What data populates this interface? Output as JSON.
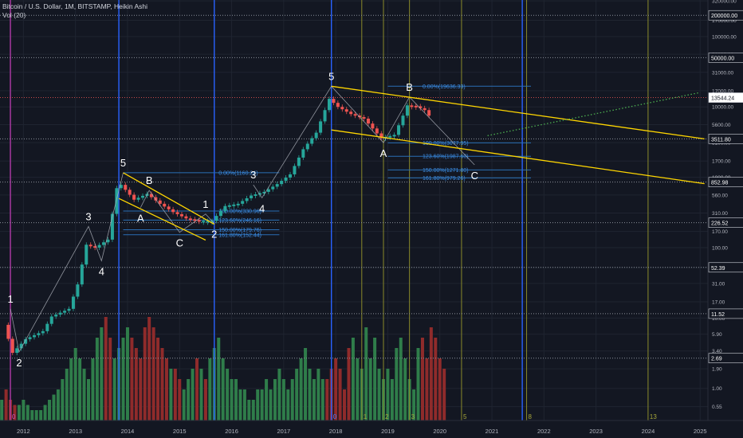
{
  "header": {
    "symbol_line": "Bitcoin / U.S. Dollar, 1M, BITSTAMP, Heikin Ashi",
    "volume_label": "Vol (20)"
  },
  "colors": {
    "background": "#131722",
    "grid": "#1f2430",
    "bull": "#26a69a",
    "bear": "#ef5350",
    "bull_volume": "#2f7d4a",
    "bear_volume": "#8f2b2b",
    "trend_line": "#ffd600",
    "fib_line": "#2a6fb5",
    "fib_text": "#3d8ee6",
    "vline_blue": "#2962ff",
    "vline_olive": "#8a8a2a",
    "vline_magenta": "#b03aa8",
    "wave_path": "#b2b5be",
    "label": "#ffffff",
    "projection": "#4caf50"
  },
  "chart_data": {
    "type": "candlestick",
    "style": "Heikin Ashi",
    "timeframe": "1M",
    "y_scale": "log",
    "x_axis": {
      "type": "year",
      "range": [
        2011.55,
        2025.15
      ],
      "ticks": [
        "2012",
        "2013",
        "2014",
        "2015",
        "2016",
        "2017",
        "2018",
        "2019",
        "2020",
        "2021",
        "2022",
        "2023",
        "2024",
        "2025"
      ]
    },
    "y_axis": {
      "range": [
        0.35,
        330000
      ],
      "ticks": [
        "0.55",
        "1.00",
        "1.90",
        "3.40",
        "5.90",
        "10.00",
        "17.00",
        "31.00",
        "52.00",
        "100.00",
        "170.00",
        "310.00",
        "560.00",
        "1000.00",
        "1700.00",
        "3100.00",
        "5600.00",
        "10000.00",
        "17000.00",
        "31000.00",
        "56000.00",
        "100000.00",
        "170000.00",
        "320000.00"
      ],
      "marked_levels": [
        "200000.00",
        "50000.00",
        "13544.24",
        "3511.80",
        "852.98",
        "226.52",
        "52.39",
        "11.52",
        "2.69"
      ],
      "highlighted_level": "13544.24"
    },
    "price_series": [
      {
        "date": "2011-09",
        "value": 8.0
      },
      {
        "date": "2011-11",
        "value": 3.2
      },
      {
        "date": "2012-02",
        "value": 5.0
      },
      {
        "date": "2012-06",
        "value": 6.5
      },
      {
        "date": "2012-08",
        "value": 10.5
      },
      {
        "date": "2012-12",
        "value": 13.5
      },
      {
        "date": "2013-02",
        "value": 30
      },
      {
        "date": "2013-04",
        "value": 110
      },
      {
        "date": "2013-06",
        "value": 100
      },
      {
        "date": "2013-09",
        "value": 130
      },
      {
        "date": "2013-11",
        "value": 700
      },
      {
        "date": "2013-12",
        "value": 780
      },
      {
        "date": "2014-03",
        "value": 480
      },
      {
        "date": "2014-06",
        "value": 580
      },
      {
        "date": "2014-09",
        "value": 420
      },
      {
        "date": "2014-12",
        "value": 320
      },
      {
        "date": "2015-03",
        "value": 260
      },
      {
        "date": "2015-06",
        "value": 240
      },
      {
        "date": "2015-09",
        "value": 240
      },
      {
        "date": "2015-12",
        "value": 390
      },
      {
        "date": "2016-03",
        "value": 420
      },
      {
        "date": "2016-06",
        "value": 550
      },
      {
        "date": "2016-09",
        "value": 620
      },
      {
        "date": "2016-12",
        "value": 800
      },
      {
        "date": "2017-03",
        "value": 1100
      },
      {
        "date": "2017-06",
        "value": 2500
      },
      {
        "date": "2017-09",
        "value": 4300
      },
      {
        "date": "2017-11",
        "value": 9000
      },
      {
        "date": "2017-12",
        "value": 13000
      },
      {
        "date": "2018-02",
        "value": 10000
      },
      {
        "date": "2018-05",
        "value": 7900
      },
      {
        "date": "2018-08",
        "value": 6800
      },
      {
        "date": "2018-11",
        "value": 4200
      },
      {
        "date": "2018-12",
        "value": 3600
      },
      {
        "date": "2019-03",
        "value": 4000
      },
      {
        "date": "2019-05",
        "value": 7500
      },
      {
        "date": "2019-06",
        "value": 10500
      },
      {
        "date": "2019-08",
        "value": 10200
      },
      {
        "date": "2019-10",
        "value": 9000
      },
      {
        "date": "2019-11",
        "value": 7500
      }
    ],
    "volume": {
      "scale": "relative",
      "values": [
        2,
        3,
        2,
        1.5,
        1.5,
        2,
        1.5,
        1,
        1,
        1,
        1.5,
        2,
        2.5,
        3,
        4,
        5,
        6,
        7,
        6,
        5,
        4,
        6,
        8,
        9,
        10,
        8,
        6,
        7,
        8,
        9,
        8,
        7,
        6,
        9,
        10,
        9,
        8,
        7,
        6,
        5,
        5,
        4,
        3,
        4,
        5,
        6,
        5,
        4,
        6,
        7,
        8,
        6,
        5,
        4,
        4,
        3,
        3,
        2,
        2,
        3,
        3,
        4,
        3,
        4,
        5,
        4,
        3,
        4,
        5,
        6,
        7,
        5,
        4,
        5,
        4,
        4,
        5,
        6,
        5,
        3,
        7,
        8,
        6,
        5,
        9,
        6,
        8,
        5,
        4,
        5,
        4,
        7,
        8,
        6,
        4,
        3,
        7,
        8,
        6,
        9,
        8,
        6,
        5
      ],
      "red_at": [
        1,
        2,
        3,
        24,
        25,
        30,
        31,
        32,
        33,
        34,
        35,
        36,
        37,
        38,
        40,
        41,
        45,
        47,
        75,
        76,
        77,
        78,
        79,
        80,
        97,
        98,
        99,
        100,
        101,
        102
      ]
    },
    "waves_2011_2013": [
      {
        "label": "1",
        "date": "2011-10",
        "value": 13.5
      },
      {
        "label": "2",
        "date": "2011-12",
        "value": 3.3
      },
      {
        "label": "3",
        "date": "2013-04",
        "value": 200
      },
      {
        "label": "4",
        "date": "2013-07",
        "value": 65
      },
      {
        "label": "5",
        "date": "2013-12",
        "value": 1160
      }
    ],
    "waves_2014_2015": [
      {
        "label": "A",
        "date": "2014-04",
        "value": 370
      },
      {
        "label": "B",
        "date": "2014-06",
        "value": 650
      },
      {
        "label": "C",
        "date": "2015-01",
        "value": 165
      },
      {
        "label": "1",
        "date": "2015-07",
        "value": 300
      },
      {
        "label": "2",
        "date": "2015-09",
        "value": 220
      }
    ],
    "waves_2016_2017": [
      {
        "label": "3",
        "date": "2016-06",
        "value": 780
      },
      {
        "label": "4",
        "date": "2016-08",
        "value": 510
      },
      {
        "label": "5",
        "date": "2017-12",
        "value": 19636
      }
    ],
    "waves_2018_2020": [
      {
        "label": "A",
        "date": "2018-12",
        "value": 3100
      },
      {
        "label": "B",
        "date": "2019-06",
        "value": 13800
      },
      {
        "label": "C",
        "date": "2020-09",
        "value": 1500
      }
    ],
    "fib_2014": {
      "high": "0.00%(1160.24)",
      "levels": [
        "100.00%(330.96)",
        "123.60%(246.16)",
        "150.00%(179.76)",
        "161.80%(152.44)"
      ]
    },
    "fib_2019": {
      "high": "0.00%(19636.33)",
      "levels": [
        "100.00%(3077.95)",
        "123.60%(1987.60)",
        "150.00%(1271.80)",
        "161.80%(979.26)"
      ]
    },
    "channel_2014": [
      {
        "from": {
          "date": "2013-12",
          "value": 1160
        },
        "to": {
          "date": "2015-09",
          "value": 215
        }
      },
      {
        "from": {
          "date": "2013-11",
          "value": 500
        },
        "to": {
          "date": "2015-07",
          "value": 128
        }
      }
    ],
    "channel_2018": [
      {
        "from": {
          "date": "2017-12",
          "value": 19636
        },
        "to": {
          "date": "2025-02",
          "value": 3511.8
        }
      },
      {
        "from": {
          "date": "2017-12",
          "value": 4700
        },
        "to": {
          "date": "2025-02",
          "value": 810
        }
      }
    ],
    "projection": [
      {
        "date": "2020-12",
        "value": 3900
      },
      {
        "date": "2025-01",
        "value": 16000
      }
    ],
    "cycle_markers": [
      {
        "label": "0",
        "date": "2011-10",
        "color": "vline_magenta"
      },
      {
        "label": "0",
        "date": "2017-12",
        "color": "vline_blue"
      },
      {
        "label": "1",
        "date": "2018-07",
        "color": "vline_olive"
      },
      {
        "label": "2",
        "date": "2018-12",
        "color": "vline_olive"
      },
      {
        "label": "3",
        "date": "2019-06",
        "color": "vline_olive"
      },
      {
        "label": "5",
        "date": "2020-06",
        "color": "vline_olive"
      },
      {
        "label": "8",
        "date": "2021-09",
        "color": "vline_olive"
      },
      {
        "label": "13",
        "date": "2024-01",
        "color": "vline_olive"
      }
    ],
    "vertical_lines": [
      {
        "date": "2013-11",
        "color": "vline_blue"
      },
      {
        "date": "2015-09",
        "color": "vline_blue"
      },
      {
        "date": "2017-12",
        "color": "vline_blue"
      },
      {
        "date": "2021-08",
        "color": "vline_blue"
      },
      {
        "date": "2011-10",
        "color": "vline_magenta"
      }
    ],
    "grid": true,
    "legend": "top-left"
  }
}
